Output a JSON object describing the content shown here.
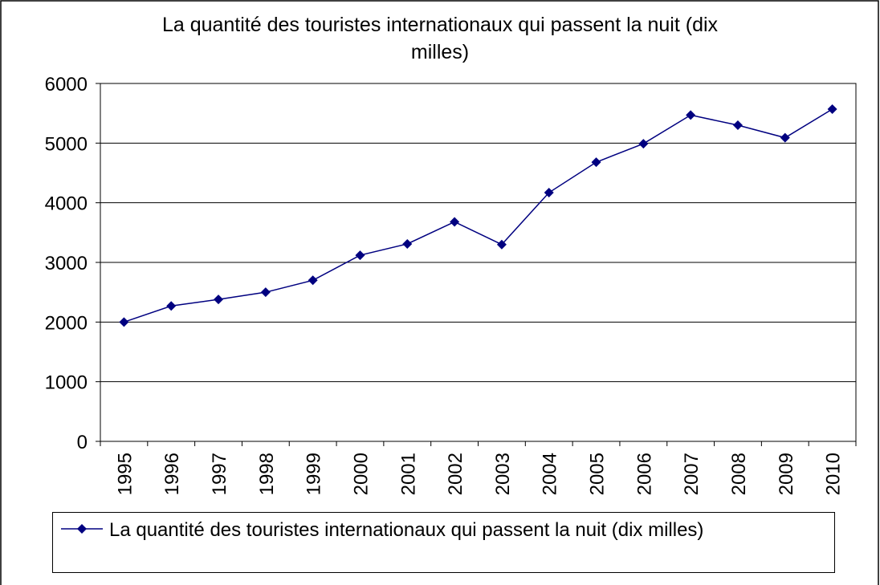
{
  "chart_data": {
    "type": "line",
    "title": "La quantité des touristes internationaux qui passent la nuit (dix milles)",
    "categories": [
      "1995",
      "1996",
      "1997",
      "1998",
      "1999",
      "2000",
      "2001",
      "2002",
      "2003",
      "2004",
      "2005",
      "2006",
      "2007",
      "2008",
      "2009",
      "2010"
    ],
    "series": [
      {
        "name": "La quantité des touristes internationaux qui passent la nuit (dix milles)",
        "color": "#000080",
        "values": [
          2000,
          2270,
          2380,
          2500,
          2700,
          3120,
          3310,
          3680,
          3300,
          4170,
          4680,
          4990,
          5470,
          5300,
          5090,
          5570
        ]
      }
    ],
    "ylim": [
      0,
      6000
    ],
    "yticks": [
      0,
      1000,
      2000,
      3000,
      4000,
      5000,
      6000
    ],
    "grid": true,
    "legend": "bottom"
  }
}
